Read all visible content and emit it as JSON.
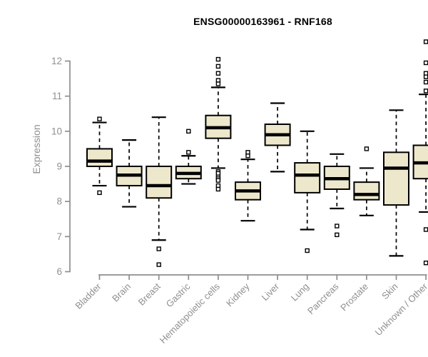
{
  "chart_data": {
    "type": "boxplot",
    "title": "ENSG00000163961 - RNF168",
    "xlabel": "",
    "ylabel": "Expression",
    "ylim": [
      6,
      12
    ],
    "yticks": [
      6,
      7,
      8,
      9,
      10,
      11,
      12
    ],
    "grid": false,
    "legend": "none",
    "categories": [
      "Bladder",
      "Brain",
      "Breast",
      "Gastric",
      "Hematopoietic cells",
      "Kidney",
      "Liver",
      "Lung",
      "Pancreas",
      "Prostate",
      "Skin",
      "Unknown / Other"
    ],
    "boxes": [
      {
        "category": "Bladder",
        "whisker_low": 8.45,
        "q1": 9.0,
        "median": 9.15,
        "q3": 9.5,
        "whisker_high": 10.25,
        "outliers": [
          10.35,
          8.25
        ]
      },
      {
        "category": "Brain",
        "whisker_low": 7.85,
        "q1": 8.45,
        "median": 8.75,
        "q3": 9.0,
        "whisker_high": 9.75,
        "outliers": []
      },
      {
        "category": "Breast",
        "whisker_low": 6.9,
        "q1": 8.1,
        "median": 8.45,
        "q3": 9.0,
        "whisker_high": 10.4,
        "outliers": [
          6.65,
          6.2
        ]
      },
      {
        "category": "Gastric",
        "whisker_low": 8.5,
        "q1": 8.65,
        "median": 8.8,
        "q3": 9.0,
        "whisker_high": 9.3,
        "outliers": [
          10.0,
          9.4
        ]
      },
      {
        "category": "Hematopoietic cells",
        "whisker_low": 8.95,
        "q1": 9.8,
        "median": 10.1,
        "q3": 10.45,
        "whisker_high": 11.25,
        "outliers": [
          12.05,
          11.85,
          11.65,
          11.45,
          11.35,
          8.85,
          8.8,
          8.7,
          8.65,
          8.6,
          8.45,
          8.35
        ]
      },
      {
        "category": "Kidney",
        "whisker_low": 7.45,
        "q1": 8.05,
        "median": 8.3,
        "q3": 8.55,
        "whisker_high": 9.2,
        "outliers": [
          9.4,
          9.3
        ]
      },
      {
        "category": "Liver",
        "whisker_low": 8.85,
        "q1": 9.6,
        "median": 9.9,
        "q3": 10.2,
        "whisker_high": 10.8,
        "outliers": []
      },
      {
        "category": "Lung",
        "whisker_low": 7.2,
        "q1": 8.25,
        "median": 8.75,
        "q3": 9.1,
        "whisker_high": 10.0,
        "outliers": [
          6.6
        ]
      },
      {
        "category": "Pancreas",
        "whisker_low": 7.8,
        "q1": 8.35,
        "median": 8.65,
        "q3": 9.0,
        "whisker_high": 9.35,
        "outliers": [
          7.3,
          7.05
        ]
      },
      {
        "category": "Prostate",
        "whisker_low": 7.6,
        "q1": 8.05,
        "median": 8.2,
        "q3": 8.55,
        "whisker_high": 8.95,
        "outliers": [
          9.5
        ]
      },
      {
        "category": "Skin",
        "whisker_low": 6.45,
        "q1": 7.9,
        "median": 8.95,
        "q3": 9.4,
        "whisker_high": 10.6,
        "outliers": []
      },
      {
        "category": "Unknown / Other",
        "whisker_low": 7.7,
        "q1": 8.65,
        "median": 9.1,
        "q3": 9.6,
        "whisker_high": 11.05,
        "outliers": [
          12.55,
          11.95,
          11.65,
          11.55,
          11.4,
          11.15,
          7.2,
          6.25
        ]
      }
    ],
    "colors": {
      "box_fill": "#EDE8CC",
      "box_stroke": "#000000",
      "median": "#000000",
      "whisker": "#000000",
      "outlier": "#000000",
      "axis": "#8e8e8e",
      "tick_label": "#8f8f8f",
      "title": "#000000",
      "background": "#ffffff"
    }
  }
}
